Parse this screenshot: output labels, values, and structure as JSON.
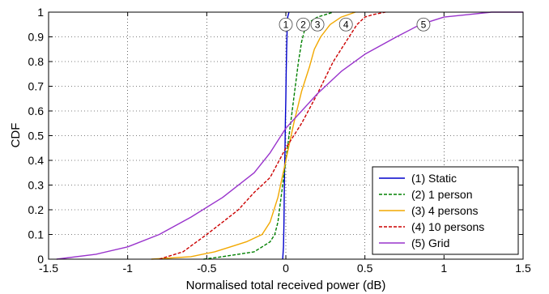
{
  "chart_data": {
    "type": "line",
    "title": "",
    "xlabel": "Normalised total received power (dB)",
    "ylabel": "CDF",
    "xlim": [
      -1.5,
      1.5
    ],
    "ylim": [
      0,
      1
    ],
    "xticks": [
      "-1.5",
      "-1",
      "-0.5",
      "0",
      "0.5",
      "1",
      "1.5"
    ],
    "yticks": [
      "0",
      "0.1",
      "0.2",
      "0.3",
      "0.4",
      "0.5",
      "0.6",
      "0.7",
      "0.8",
      "0.9",
      "1"
    ],
    "grid": true,
    "legend_position": "bottom-right",
    "series": [
      {
        "name": "(1) Static",
        "color": "#0000cc",
        "dash": "solid",
        "marker": "1",
        "x": [
          -0.02,
          -0.015,
          -0.012,
          -0.01,
          -0.008,
          -0.005,
          -0.003,
          0.0,
          0.002,
          0.005,
          0.008,
          0.012,
          0.02
        ],
        "y": [
          0.0,
          0.05,
          0.15,
          0.25,
          0.35,
          0.45,
          0.55,
          0.65,
          0.75,
          0.85,
          0.93,
          0.98,
          1.0
        ]
      },
      {
        "name": "(2) 1 person",
        "color": "#008000",
        "dash": "dashed",
        "marker": "2",
        "x": [
          -0.52,
          -0.4,
          -0.3,
          -0.2,
          -0.15,
          -0.1,
          -0.07,
          -0.05,
          -0.03,
          0.0,
          0.03,
          0.06,
          0.08,
          0.1,
          0.12,
          0.15,
          0.2,
          0.25,
          0.3
        ],
        "y": [
          0.0,
          0.01,
          0.02,
          0.03,
          0.05,
          0.07,
          0.1,
          0.15,
          0.25,
          0.4,
          0.55,
          0.7,
          0.8,
          0.88,
          0.93,
          0.96,
          0.98,
          0.99,
          1.0
        ]
      },
      {
        "name": "(3) 4 persons",
        "color": "#f2a800",
        "dash": "solid",
        "marker": "3",
        "x": [
          -0.85,
          -0.6,
          -0.45,
          -0.35,
          -0.25,
          -0.15,
          -0.1,
          -0.05,
          0.0,
          0.05,
          0.1,
          0.15,
          0.18,
          0.22,
          0.28,
          0.35,
          0.44
        ],
        "y": [
          0.0,
          0.01,
          0.03,
          0.05,
          0.07,
          0.1,
          0.15,
          0.25,
          0.4,
          0.55,
          0.68,
          0.78,
          0.85,
          0.9,
          0.95,
          0.98,
          1.0
        ]
      },
      {
        "name": "(4) 10 persons",
        "color": "#cc0000",
        "dash": "dashed",
        "marker": "4",
        "x": [
          -0.8,
          -0.65,
          -0.5,
          -0.4,
          -0.3,
          -0.2,
          -0.1,
          0.0,
          0.1,
          0.2,
          0.3,
          0.38,
          0.45,
          0.5,
          0.55,
          0.63
        ],
        "y": [
          0.0,
          0.03,
          0.1,
          0.15,
          0.2,
          0.27,
          0.33,
          0.45,
          0.55,
          0.67,
          0.8,
          0.88,
          0.95,
          0.98,
          0.99,
          1.0
        ]
      },
      {
        "name": "(5) Grid",
        "color": "#9933cc",
        "dash": "solid",
        "marker": "5",
        "x": [
          -1.45,
          -1.2,
          -1.0,
          -0.8,
          -0.6,
          -0.4,
          -0.2,
          -0.1,
          0.0,
          0.1,
          0.2,
          0.35,
          0.5,
          0.7,
          0.85,
          1.0,
          1.15,
          1.3,
          1.5
        ],
        "y": [
          0.0,
          0.02,
          0.05,
          0.1,
          0.17,
          0.25,
          0.35,
          0.43,
          0.53,
          0.6,
          0.67,
          0.76,
          0.83,
          0.9,
          0.95,
          0.98,
          0.99,
          1.0,
          1.0
        ]
      }
    ],
    "markers": [
      {
        "label": "1",
        "x": 0.0,
        "y": 0.95
      },
      {
        "label": "2",
        "x": 0.11,
        "y": 0.95
      },
      {
        "label": "3",
        "x": 0.2,
        "y": 0.95
      },
      {
        "label": "4",
        "x": 0.38,
        "y": 0.95
      },
      {
        "label": "5",
        "x": 0.87,
        "y": 0.95
      }
    ]
  }
}
